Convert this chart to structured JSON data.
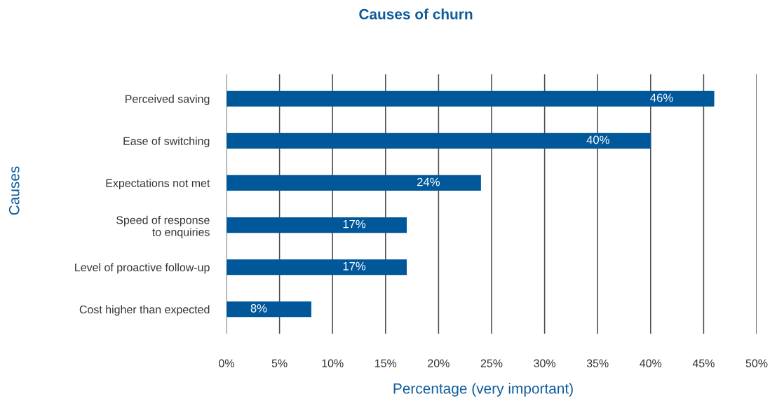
{
  "chart_data": {
    "type": "bar",
    "orientation": "horizontal",
    "title": "Causes of churn",
    "xlabel": "Percentage (very important)",
    "ylabel": "Causes",
    "categories": [
      "Perceived saving",
      "Ease of switching",
      "Expectations not met",
      "Speed of response\nto enquiries",
      "Level of proactive follow-up",
      "Cost higher than expected"
    ],
    "values": [
      46,
      40,
      24,
      17,
      17,
      8
    ],
    "color": "#00589b",
    "value_labels": [
      "46%",
      "40%",
      "24%",
      "17%",
      "17%",
      "8%"
    ],
    "xlim": [
      0,
      50
    ],
    "xticks": [
      {
        "value": 0,
        "label": "0%"
      },
      {
        "value": 5,
        "label": "5%"
      },
      {
        "value": 10,
        "label": "10%"
      },
      {
        "value": 15,
        "label": "15%"
      },
      {
        "value": 20,
        "label": "20%"
      },
      {
        "value": 25,
        "label": "25%"
      },
      {
        "value": 30,
        "label": "30%"
      },
      {
        "value": 35,
        "label": "35%"
      },
      {
        "value": 40,
        "label": "40%"
      },
      {
        "value": 45,
        "label": "45%"
      },
      {
        "value": 50,
        "label": "50%"
      }
    ],
    "grid": "x",
    "legend": false
  }
}
